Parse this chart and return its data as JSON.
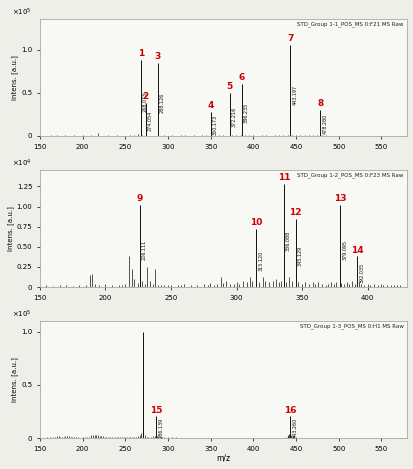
{
  "panels": [
    {
      "title": "STD_Group 1-1_POS_MS 0:F21 MS Raw",
      "xrange": [
        150,
        580
      ],
      "yrange": [
        0,
        135000.0
      ],
      "ytick_scale": 5,
      "ytick_label_scale": "x10⁵",
      "ytick_labels": [
        "0",
        "0.5",
        "1.0"
      ],
      "ytick_values": [
        0,
        50000.0,
        100000.0
      ],
      "labeled_peaks": [
        {
          "mz": 268.073,
          "intensity": 88000.0,
          "label": "1",
          "mz_label": "268.073",
          "label_side": "left"
        },
        {
          "mz": 274.054,
          "intensity": 38000.0,
          "label": "2",
          "mz_label": "274.054",
          "label_side": "right"
        },
        {
          "mz": 288.126,
          "intensity": 85000.0,
          "label": "3",
          "mz_label": "288.126",
          "label_side": "right"
        },
        {
          "mz": 350.173,
          "intensity": 28000.0,
          "label": "4",
          "mz_label": "350.173",
          "label_side": "left"
        },
        {
          "mz": 372.216,
          "intensity": 50000.0,
          "label": "5",
          "mz_label": "372.216",
          "label_side": "left"
        },
        {
          "mz": 386.235,
          "intensity": 60000.0,
          "label": "6",
          "mz_label": "386.235",
          "label_side": "right"
        },
        {
          "mz": 443.197,
          "intensity": 105000.0,
          "label": "7",
          "mz_label": "443.197",
          "label_side": "left"
        },
        {
          "mz": 478.28,
          "intensity": 30000.0,
          "label": "8",
          "mz_label": "478.280",
          "label_side": "right"
        }
      ],
      "noise_peaks": [
        [
          163,
          1200
        ],
        [
          170,
          800
        ],
        [
          180,
          600
        ],
        [
          190,
          900
        ],
        [
          200,
          700
        ],
        [
          210,
          1500
        ],
        [
          218,
          3000
        ],
        [
          230,
          600
        ],
        [
          240,
          800
        ],
        [
          255,
          700
        ],
        [
          260,
          1000
        ],
        [
          265,
          2000
        ],
        [
          270,
          1500
        ],
        [
          295,
          600
        ],
        [
          305,
          800
        ],
        [
          315,
          700
        ],
        [
          320,
          1200
        ],
        [
          330,
          600
        ],
        [
          340,
          900
        ],
        [
          345,
          600
        ],
        [
          355,
          1500
        ],
        [
          360,
          800
        ],
        [
          365,
          1200
        ],
        [
          375,
          900
        ],
        [
          380,
          700
        ],
        [
          385,
          1500
        ],
        [
          390,
          1200
        ],
        [
          395,
          600
        ],
        [
          400,
          800
        ],
        [
          410,
          700
        ],
        [
          415,
          600
        ],
        [
          420,
          500
        ],
        [
          425,
          600
        ],
        [
          430,
          900
        ],
        [
          435,
          1200
        ],
        [
          440,
          800
        ],
        [
          445,
          700
        ],
        [
          450,
          600
        ],
        [
          455,
          1500
        ],
        [
          460,
          800
        ],
        [
          465,
          700
        ],
        [
          470,
          900
        ],
        [
          475,
          600
        ],
        [
          480,
          700
        ],
        [
          485,
          600
        ],
        [
          490,
          500
        ],
        [
          495,
          400
        ],
        [
          500,
          300
        ],
        [
          505,
          200
        ],
        [
          510,
          300
        ],
        [
          515,
          200
        ],
        [
          520,
          300
        ],
        [
          525,
          400
        ],
        [
          530,
          200
        ],
        [
          540,
          200
        ],
        [
          550,
          150
        ]
      ]
    },
    {
      "title": "STD_Group 1-2_POS_MS 0:F23 MS Raw",
      "xrange": [
        150,
        430
      ],
      "yrange": [
        0,
        14500.0
      ],
      "ytick_scale": 4,
      "ytick_label_scale": "x10⁴",
      "ytick_labels": [
        "0",
        "0.25",
        "0.50",
        "0.75",
        "1.00",
        "1.25"
      ],
      "ytick_values": [
        0,
        2500.0,
        5000.0,
        7500.0,
        10000.0,
        12500.0
      ],
      "labeled_peaks": [
        {
          "mz": 226.111,
          "intensity": 10200.0,
          "label": "9",
          "mz_label": "226.111",
          "label_side": "left"
        },
        {
          "mz": 315.12,
          "intensity": 7200.0,
          "label": "10",
          "mz_label": "315.120",
          "label_side": "left"
        },
        {
          "mz": 336.088,
          "intensity": 12800.0,
          "label": "11",
          "mz_label": "336.088",
          "label_side": "left"
        },
        {
          "mz": 345.129,
          "intensity": 8500.0,
          "label": "12",
          "mz_label": "345.129",
          "label_side": "right"
        },
        {
          "mz": 379.095,
          "intensity": 10200.0,
          "label": "13",
          "mz_label": "379.095",
          "label_side": "right"
        },
        {
          "mz": 392.035,
          "intensity": 3800.0,
          "label": "14",
          "mz_label": "392.035",
          "label_side": "right"
        }
      ],
      "noise_peaks": [
        [
          155,
          200
        ],
        [
          160,
          150
        ],
        [
          165,
          300
        ],
        [
          170,
          200
        ],
        [
          175,
          180
        ],
        [
          180,
          250
        ],
        [
          185,
          300
        ],
        [
          188,
          1500
        ],
        [
          190,
          1600
        ],
        [
          192,
          400
        ],
        [
          195,
          300
        ],
        [
          200,
          350
        ],
        [
          205,
          200
        ],
        [
          210,
          250
        ],
        [
          213,
          300
        ],
        [
          215,
          400
        ],
        [
          218,
          3800
        ],
        [
          220,
          2200
        ],
        [
          222,
          1000
        ],
        [
          225,
          500
        ],
        [
          228,
          800
        ],
        [
          230,
          400
        ],
        [
          232,
          2500
        ],
        [
          234,
          700
        ],
        [
          236,
          350
        ],
        [
          238,
          2200
        ],
        [
          240,
          300
        ],
        [
          242,
          200
        ],
        [
          245,
          300
        ],
        [
          248,
          200
        ],
        [
          250,
          250
        ],
        [
          255,
          300
        ],
        [
          258,
          200
        ],
        [
          260,
          350
        ],
        [
          265,
          200
        ],
        [
          270,
          300
        ],
        [
          275,
          400
        ],
        [
          278,
          300
        ],
        [
          280,
          500
        ],
        [
          283,
          300
        ],
        [
          285,
          400
        ],
        [
          288,
          1200
        ],
        [
          290,
          500
        ],
        [
          292,
          800
        ],
        [
          295,
          400
        ],
        [
          298,
          350
        ],
        [
          300,
          600
        ],
        [
          302,
          400
        ],
        [
          305,
          800
        ],
        [
          308,
          600
        ],
        [
          310,
          1200
        ],
        [
          312,
          800
        ],
        [
          317,
          600
        ],
        [
          320,
          1200
        ],
        [
          322,
          800
        ],
        [
          325,
          600
        ],
        [
          328,
          800
        ],
        [
          330,
          1000
        ],
        [
          332,
          600
        ],
        [
          334,
          800
        ],
        [
          338,
          600
        ],
        [
          340,
          1200
        ],
        [
          342,
          800
        ],
        [
          347,
          600
        ],
        [
          350,
          400
        ],
        [
          352,
          600
        ],
        [
          355,
          400
        ],
        [
          358,
          600
        ],
        [
          360,
          400
        ],
        [
          362,
          600
        ],
        [
          365,
          400
        ],
        [
          368,
          300
        ],
        [
          370,
          400
        ],
        [
          372,
          600
        ],
        [
          374,
          400
        ],
        [
          376,
          600
        ],
        [
          380,
          500
        ],
        [
          382,
          400
        ],
        [
          384,
          600
        ],
        [
          386,
          400
        ],
        [
          388,
          800
        ],
        [
          390,
          400
        ],
        [
          393,
          600
        ],
        [
          395,
          400
        ],
        [
          397,
          300
        ],
        [
          400,
          400
        ],
        [
          402,
          300
        ],
        [
          405,
          400
        ],
        [
          408,
          300
        ],
        [
          410,
          400
        ],
        [
          412,
          300
        ],
        [
          415,
          200
        ],
        [
          418,
          300
        ],
        [
          420,
          200
        ],
        [
          422,
          300
        ],
        [
          425,
          200
        ]
      ]
    },
    {
      "title": "STD_Group 1-3_POS_MS 0:H1 MS Raw",
      "xrange": [
        150,
        580
      ],
      "yrange": [
        0,
        110000.0
      ],
      "ytick_scale": 5,
      "ytick_label_scale": "x10⁵",
      "ytick_labels": [
        "0",
        "0.5",
        "1.0"
      ],
      "ytick_values": [
        0,
        50000.0,
        100000.0
      ],
      "labeled_peaks": [
        {
          "mz": 270.5,
          "intensity": 100000.0,
          "label": "",
          "mz_label": "",
          "label_side": "left"
        },
        {
          "mz": 286.139,
          "intensity": 20500.0,
          "label": "15",
          "mz_label": "286.139",
          "label_side": "right"
        },
        {
          "mz": 443.26,
          "intensity": 20500.0,
          "label": "16",
          "mz_label": "443.260",
          "label_side": "right"
        }
      ],
      "noise_peaks": [
        [
          158,
          1000
        ],
        [
          162,
          800
        ],
        [
          165,
          600
        ],
        [
          168,
          1000
        ],
        [
          170,
          2000
        ],
        [
          172,
          1500
        ],
        [
          174,
          1200
        ],
        [
          176,
          800
        ],
        [
          178,
          600
        ],
        [
          180,
          2200
        ],
        [
          182,
          1800
        ],
        [
          184,
          1500
        ],
        [
          186,
          1000
        ],
        [
          188,
          800
        ],
        [
          190,
          600
        ],
        [
          192,
          500
        ],
        [
          195,
          500
        ],
        [
          200,
          600
        ],
        [
          203,
          500
        ],
        [
          205,
          600
        ],
        [
          208,
          800
        ],
        [
          210,
          3000
        ],
        [
          212,
          2800
        ],
        [
          214,
          2500
        ],
        [
          216,
          3000
        ],
        [
          218,
          2500
        ],
        [
          220,
          1800
        ],
        [
          222,
          1500
        ],
        [
          224,
          1500
        ],
        [
          226,
          1000
        ],
        [
          228,
          1200
        ],
        [
          230,
          800
        ],
        [
          232,
          1000
        ],
        [
          235,
          1000
        ],
        [
          238,
          700
        ],
        [
          240,
          1000
        ],
        [
          242,
          800
        ],
        [
          244,
          1000
        ],
        [
          246,
          800
        ],
        [
          248,
          600
        ],
        [
          250,
          800
        ],
        [
          252,
          1200
        ],
        [
          254,
          1000
        ],
        [
          256,
          1200
        ],
        [
          258,
          1000
        ],
        [
          260,
          1200
        ],
        [
          263,
          800
        ],
        [
          265,
          1500
        ],
        [
          267,
          3000
        ],
        [
          269,
          5000
        ],
        [
          271,
          52000
        ],
        [
          273,
          3000
        ],
        [
          275,
          1200
        ],
        [
          277,
          800
        ],
        [
          280,
          1000
        ],
        [
          283,
          2000
        ],
        [
          285,
          1500
        ],
        [
          287,
          1800
        ],
        [
          289,
          1200
        ],
        [
          291,
          800
        ],
        [
          293,
          600
        ],
        [
          295,
          500
        ],
        [
          298,
          400
        ],
        [
          300,
          500
        ],
        [
          303,
          400
        ],
        [
          305,
          500
        ],
        [
          308,
          400
        ],
        [
          310,
          500
        ],
        [
          315,
          400
        ],
        [
          320,
          300
        ],
        [
          325,
          400
        ],
        [
          330,
          300
        ],
        [
          335,
          400
        ],
        [
          340,
          300
        ],
        [
          345,
          400
        ],
        [
          350,
          300
        ],
        [
          355,
          200
        ],
        [
          360,
          300
        ],
        [
          365,
          200
        ],
        [
          370,
          300
        ],
        [
          375,
          200
        ],
        [
          380,
          300
        ],
        [
          385,
          200
        ],
        [
          390,
          300
        ],
        [
          395,
          200
        ],
        [
          400,
          300
        ],
        [
          405,
          200
        ],
        [
          410,
          300
        ],
        [
          415,
          200
        ],
        [
          420,
          150
        ],
        [
          425,
          200
        ],
        [
          430,
          150
        ],
        [
          435,
          300
        ],
        [
          438,
          800
        ],
        [
          440,
          2000
        ],
        [
          441,
          3000
        ],
        [
          442,
          4000
        ],
        [
          444,
          3000
        ],
        [
          446,
          1500
        ],
        [
          448,
          800
        ],
        [
          450,
          600
        ],
        [
          455,
          200
        ],
        [
          460,
          150
        ],
        [
          465,
          200
        ],
        [
          470,
          150
        ],
        [
          480,
          100
        ],
        [
          490,
          100
        ],
        [
          500,
          100
        ],
        [
          510,
          100
        ],
        [
          520,
          100
        ],
        [
          530,
          100
        ]
      ]
    }
  ],
  "label_color": "#cc0000",
  "peak_color": "#111111",
  "bg_color": "#f8f8f5",
  "fig_bg": "#efefea"
}
